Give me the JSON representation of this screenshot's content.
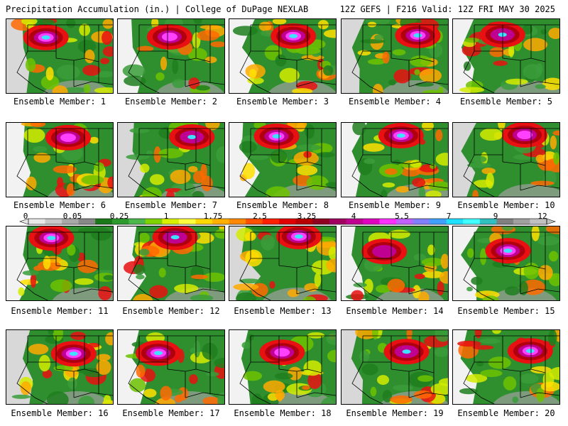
{
  "header": {
    "title_left": "Precipitation Accumulation (in.) | College of DuPage NEXLAB",
    "title_right": "12Z GEFS | F216 Valid: 12Z FRI MAY 30 2025"
  },
  "colorbar": {
    "labels": [
      "0",
      "0.05",
      "0.25",
      "1",
      "1.75",
      "2.5",
      "3.25",
      "4",
      "5.5",
      "7",
      "9",
      "12"
    ],
    "colors": [
      "#e8e8e8",
      "#c8c8c8",
      "#a8a8a8",
      "#888888",
      "#1a7a1a",
      "#2e9a2e",
      "#4cb84c",
      "#7fd400",
      "#d8f000",
      "#ffff40",
      "#ffd800",
      "#ffb000",
      "#ff8800",
      "#ff5000",
      "#ff2000",
      "#e00000",
      "#b80000",
      "#900020",
      "#a00060",
      "#c00090",
      "#e000c0",
      "#ff30ff",
      "#c060ff",
      "#8080ff",
      "#40a0ff",
      "#20e0ff",
      "#40ffff",
      "#30c0c0",
      "#808080",
      "#a0a0a0",
      "#c0c0c0"
    ]
  },
  "members": [
    {
      "label": "Ensemble Member: 1"
    },
    {
      "label": "Ensemble Member: 2"
    },
    {
      "label": "Ensemble Member: 3"
    },
    {
      "label": "Ensemble Member: 4"
    },
    {
      "label": "Ensemble Member: 5"
    },
    {
      "label": "Ensemble Member: 6"
    },
    {
      "label": "Ensemble Member: 7"
    },
    {
      "label": "Ensemble Member: 8"
    },
    {
      "label": "Ensemble Member: 9"
    },
    {
      "label": "Ensemble Member: 10"
    },
    {
      "label": "Ensemble Member: 11"
    },
    {
      "label": "Ensemble Member: 12"
    },
    {
      "label": "Ensemble Member: 13"
    },
    {
      "label": "Ensemble Member: 14"
    },
    {
      "label": "Ensemble Member: 15"
    },
    {
      "label": "Ensemble Member: 16"
    },
    {
      "label": "Ensemble Member: 17"
    },
    {
      "label": "Ensemble Member: 18"
    },
    {
      "label": "Ensemble Member: 19"
    },
    {
      "label": "Ensemble Member: 20"
    }
  ]
}
